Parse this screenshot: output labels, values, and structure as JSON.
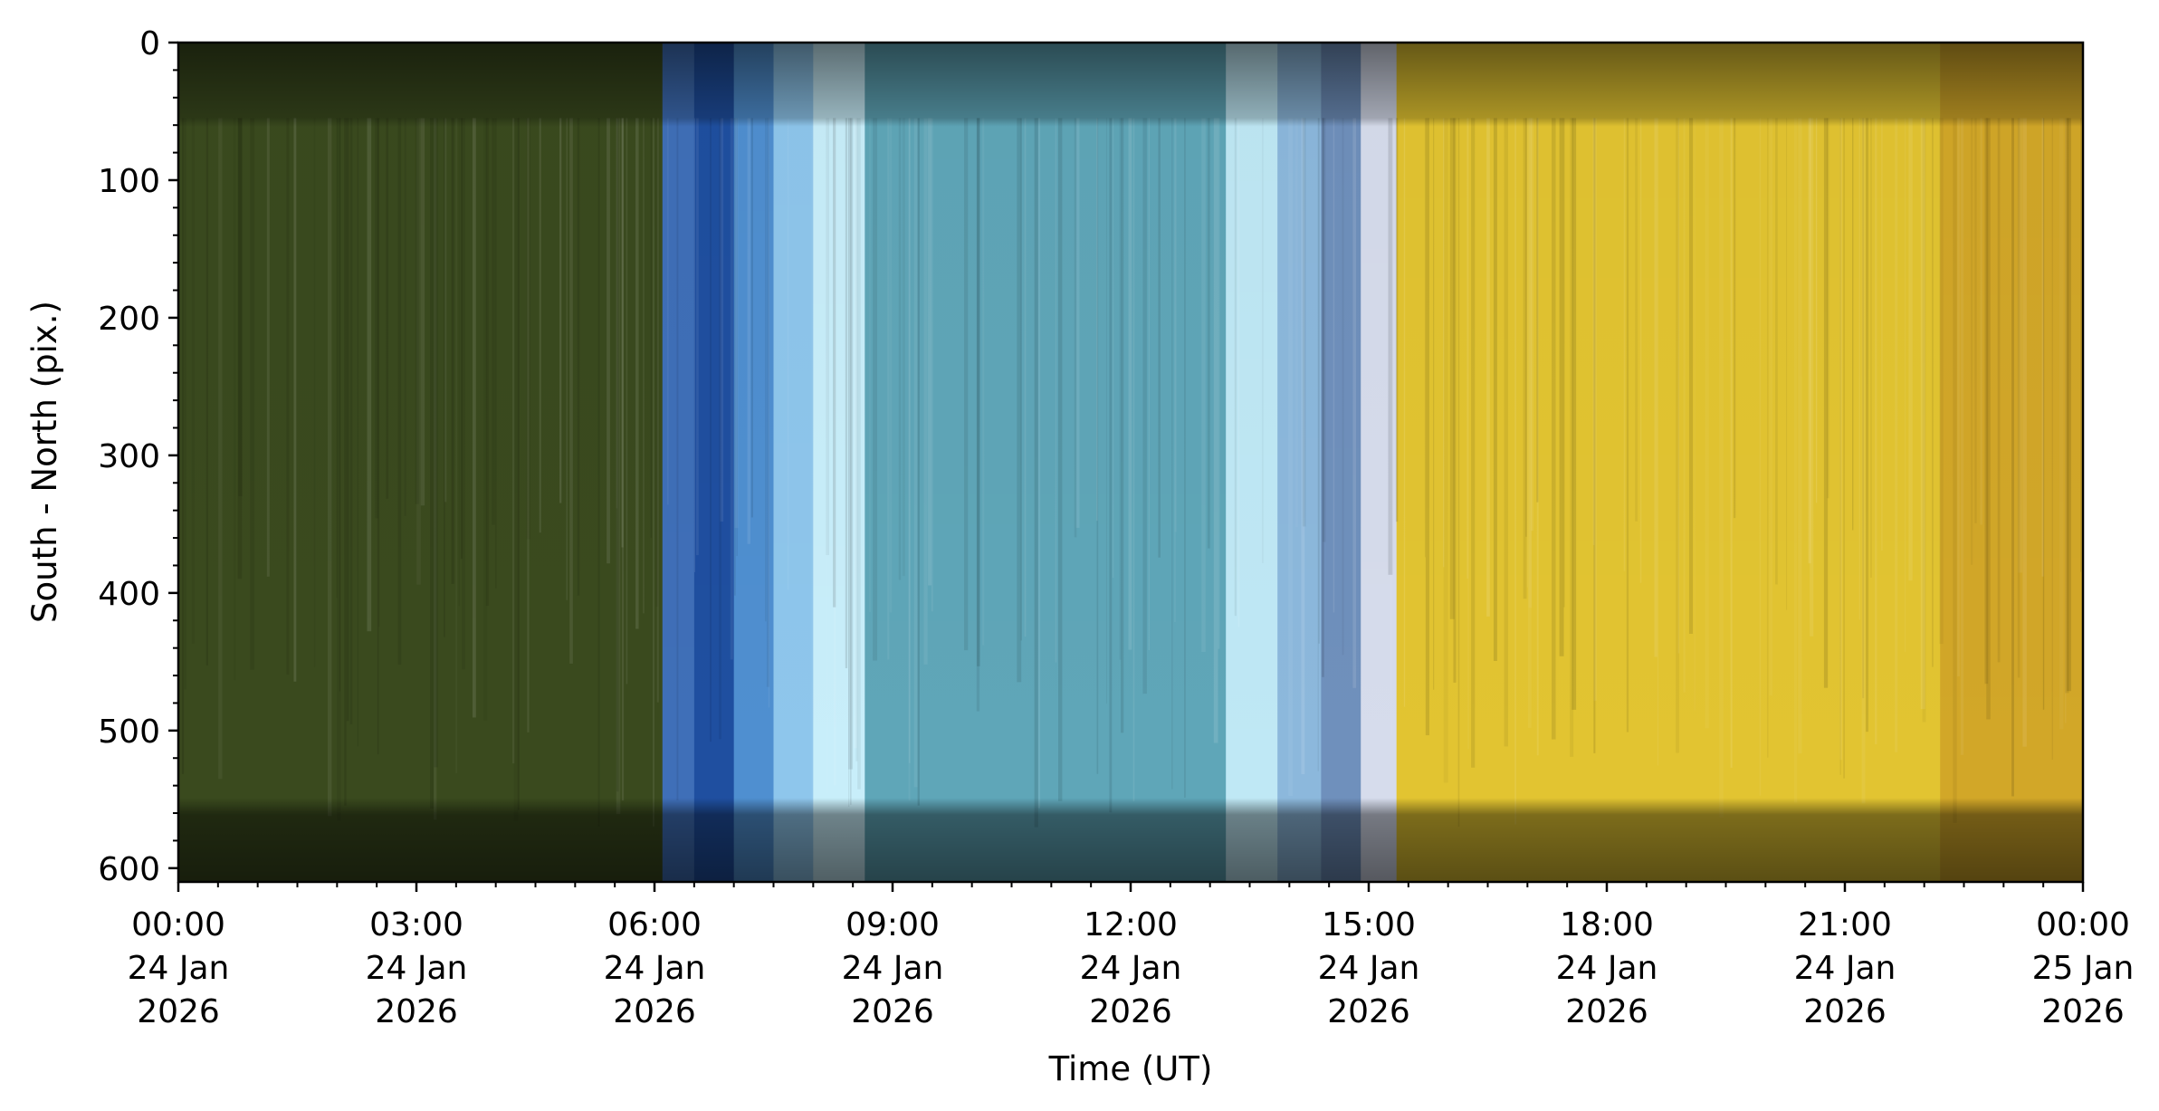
{
  "chart_data": {
    "type": "heatmap",
    "title": "",
    "xlabel": "Time (UT)",
    "ylabel": "South - North (pix.)",
    "ylim": [
      610,
      0
    ],
    "xlim_hours": [
      0,
      24
    ],
    "y_ticks": [
      "0",
      "100",
      "200",
      "300",
      "400",
      "500",
      "600"
    ],
    "y_tick_values": [
      0,
      100,
      200,
      300,
      400,
      500,
      600
    ],
    "x_tick_values_hours": [
      0,
      3,
      6,
      9,
      12,
      15,
      18,
      21,
      24
    ],
    "x_ticks": [
      {
        "time": "00:00",
        "day": "24 Jan",
        "year": "2026"
      },
      {
        "time": "03:00",
        "day": "24 Jan",
        "year": "2026"
      },
      {
        "time": "06:00",
        "day": "24 Jan",
        "year": "2026"
      },
      {
        "time": "09:00",
        "day": "24 Jan",
        "year": "2026"
      },
      {
        "time": "12:00",
        "day": "24 Jan",
        "year": "2026"
      },
      {
        "time": "15:00",
        "day": "24 Jan",
        "year": "2026"
      },
      {
        "time": "18:00",
        "day": "24 Jan",
        "year": "2026"
      },
      {
        "time": "21:00",
        "day": "24 Jan",
        "year": "2026"
      },
      {
        "time": "00:00",
        "day": "25 Jan",
        "year": "2026"
      }
    ],
    "grid": false,
    "segments": [
      {
        "start_hour": 0.0,
        "end_hour": 6.1,
        "color": "#3a4a1e"
      },
      {
        "start_hour": 6.1,
        "end_hour": 6.5,
        "color": "#3f6fb8"
      },
      {
        "start_hour": 6.5,
        "end_hour": 7.0,
        "color": "#1f4fa0"
      },
      {
        "start_hour": 7.0,
        "end_hour": 7.5,
        "color": "#4f8fd0"
      },
      {
        "start_hour": 7.5,
        "end_hour": 8.0,
        "color": "#8ec6ec"
      },
      {
        "start_hour": 8.0,
        "end_hour": 8.65,
        "color": "#c8eefa"
      },
      {
        "start_hour": 8.65,
        "end_hour": 13.2,
        "color": "#5fa6b8"
      },
      {
        "start_hour": 13.2,
        "end_hour": 13.85,
        "color": "#bfe8f5"
      },
      {
        "start_hour": 13.85,
        "end_hour": 14.4,
        "color": "#8cb8dc"
      },
      {
        "start_hour": 14.4,
        "end_hour": 14.9,
        "color": "#6f90bc"
      },
      {
        "start_hour": 14.9,
        "end_hour": 15.35,
        "color": "#d6dcec"
      },
      {
        "start_hour": 15.35,
        "end_hour": 22.2,
        "color": "#e2c431"
      },
      {
        "start_hour": 22.2,
        "end_hour": 24.0,
        "color": "#d2a728"
      }
    ]
  }
}
